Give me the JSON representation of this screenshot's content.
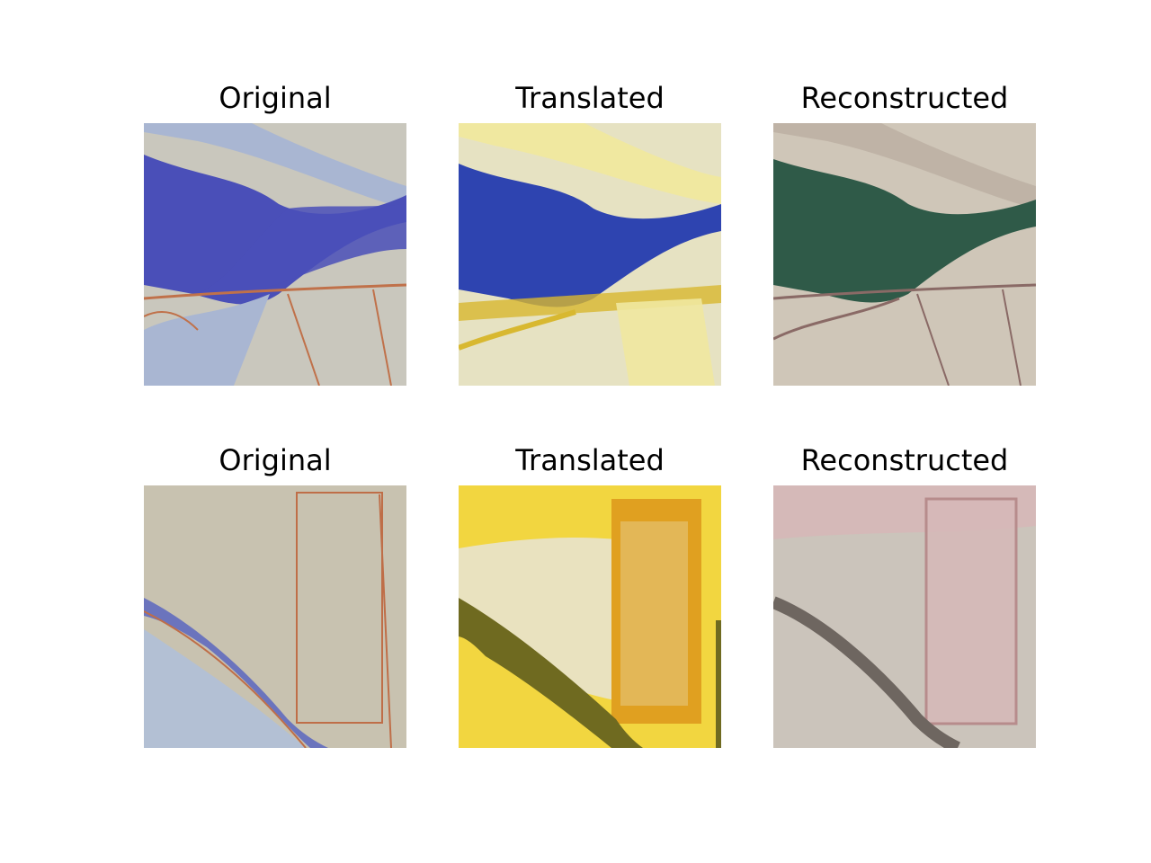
{
  "figure": {
    "rows": [
      {
        "panels": [
          {
            "title": "Original",
            "palette": {
              "ground": "#c9c7bd",
              "accent": "#4a4fb8",
              "line": "#c0714a",
              "light": "#a9b6d2"
            }
          },
          {
            "title": "Translated",
            "palette": {
              "ground": "#e6e2c2",
              "accent": "#2e44b0",
              "line": "#d8b830",
              "light": "#f0e8a0"
            }
          },
          {
            "title": "Reconstructed",
            "palette": {
              "ground": "#cfc6b8",
              "accent": "#2f5a48",
              "line": "#8a6a66",
              "light": "#bfb3a6"
            }
          }
        ]
      },
      {
        "panels": [
          {
            "title": "Original",
            "palette": {
              "ground": "#c8c2b0",
              "accent": "#6b74bd",
              "line": "#bf6e48",
              "light": "#b3c0d4"
            }
          },
          {
            "title": "Translated",
            "palette": {
              "ground": "#f2d640",
              "accent": "#6f6a20",
              "line": "#e0a020",
              "light": "#e9e2bf"
            }
          },
          {
            "title": "Reconstructed",
            "palette": {
              "ground": "#cbc4bb",
              "accent": "#6e6660",
              "line": "#b78c8c",
              "light": "#d6b8b8"
            }
          }
        ]
      }
    ]
  }
}
